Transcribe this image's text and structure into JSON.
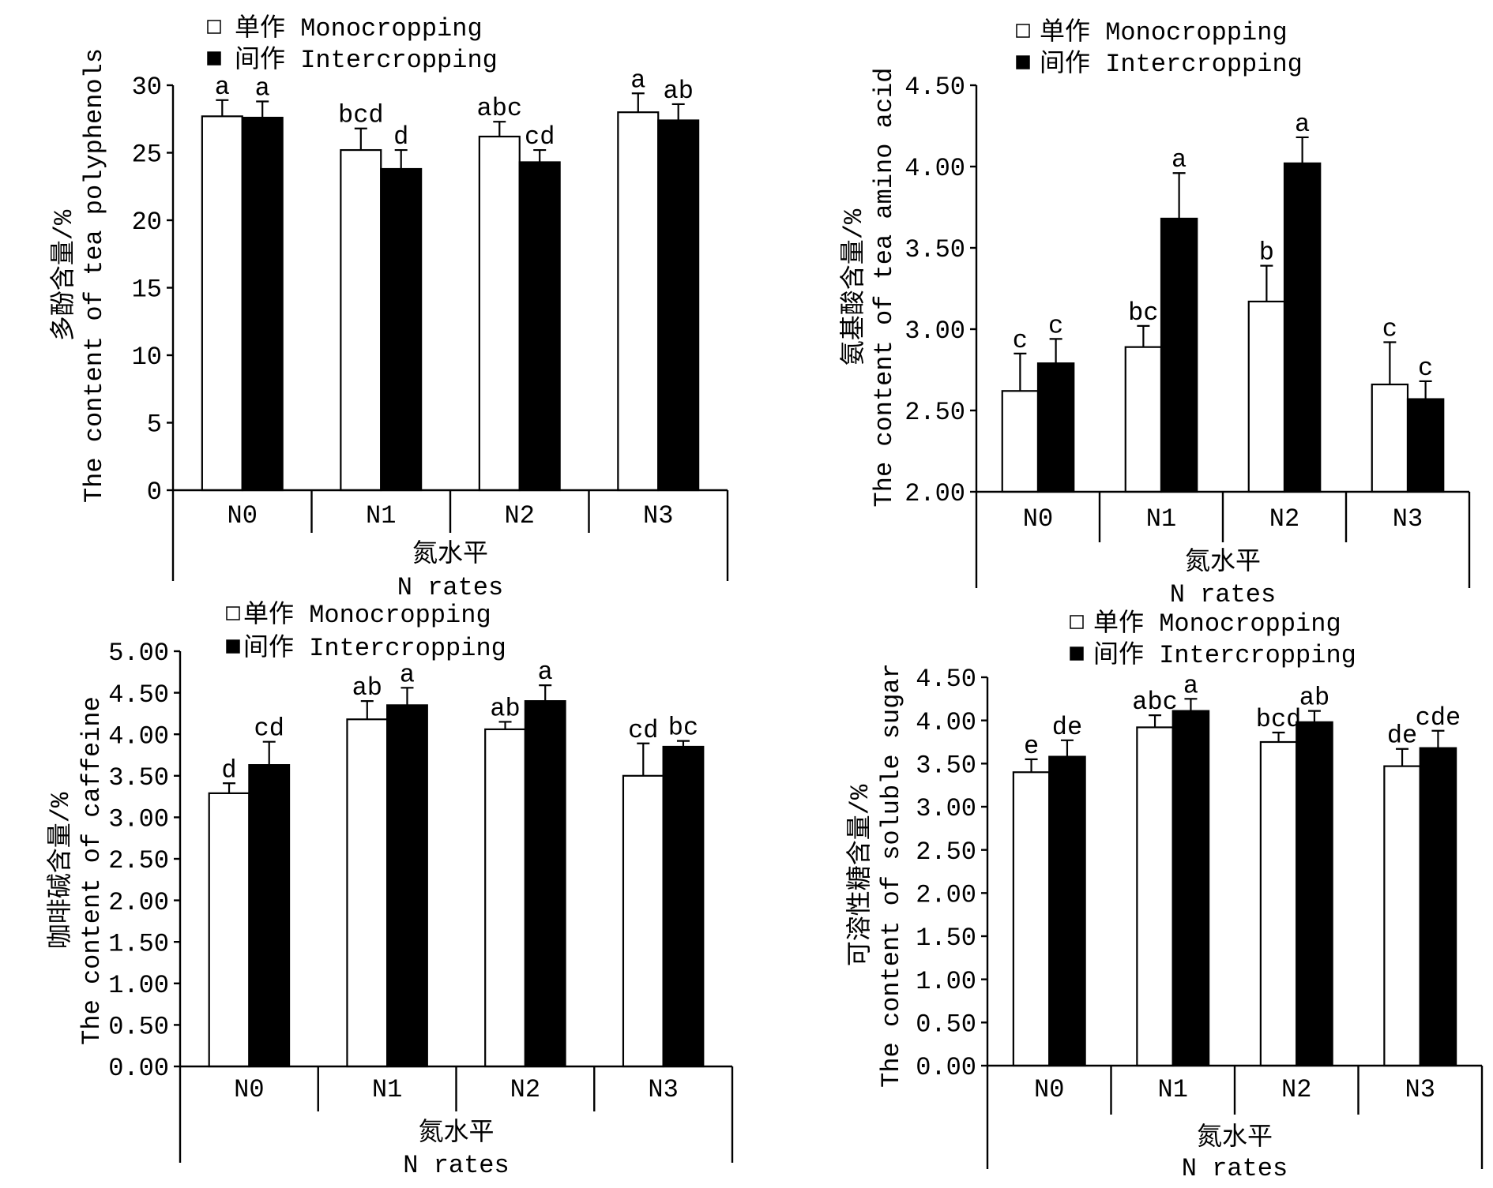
{
  "chart_data": [
    {
      "type": "bar",
      "ylabel": [
        "多酚含量/%",
        "The content of tea polyphenols"
      ],
      "xlabel": [
        "氮水平",
        "N rates"
      ],
      "categories": [
        "N0",
        "N1",
        "N2",
        "N3"
      ],
      "ylim": [
        0,
        30
      ],
      "yticks": [
        "0",
        "5",
        "10",
        "15",
        "20",
        "25",
        "30"
      ],
      "grid": false,
      "legend": "top-left",
      "series": [
        {
          "name": "单作 Monocropping",
          "color": "#ffffff",
          "values": [
            27.7,
            25.2,
            26.2,
            28.0
          ],
          "error": [
            1.2,
            1.6,
            1.1,
            1.4
          ],
          "letters": [
            "a",
            "bcd",
            "abc",
            "a"
          ]
        },
        {
          "name": "间作 Intercropping",
          "color": "#000000",
          "values": [
            27.6,
            23.8,
            24.3,
            27.4
          ],
          "error": [
            1.2,
            1.4,
            0.9,
            1.2
          ],
          "letters": [
            "a",
            "d",
            "cd",
            "ab"
          ]
        }
      ]
    },
    {
      "type": "bar",
      "ylabel": [
        "氨基酸含量/%",
        "The content of tea amino acid"
      ],
      "xlabel": [
        "氮水平",
        "N rates"
      ],
      "categories": [
        "N0",
        "N1",
        "N2",
        "N3"
      ],
      "ylim": [
        2.0,
        4.5
      ],
      "yticks": [
        "2.00",
        "2.50",
        "3.00",
        "3.50",
        "4.00",
        "4.50"
      ],
      "grid": false,
      "legend": "top-left",
      "series": [
        {
          "name": "单作 Monocropping",
          "color": "#ffffff",
          "values": [
            2.62,
            2.89,
            3.17,
            2.66
          ],
          "error": [
            0.23,
            0.13,
            0.22,
            0.26
          ],
          "letters": [
            "c",
            "bc",
            "b",
            "c"
          ]
        },
        {
          "name": "间作 Intercropping",
          "color": "#000000",
          "values": [
            2.79,
            3.68,
            4.02,
            2.57
          ],
          "error": [
            0.15,
            0.28,
            0.16,
            0.11
          ],
          "letters": [
            "c",
            "a",
            "a",
            "c"
          ]
        }
      ]
    },
    {
      "type": "bar",
      "ylabel": [
        "咖啡碱含量/%",
        "The content of caffeine"
      ],
      "xlabel": [
        "氮水平",
        "N rates"
      ],
      "categories": [
        "N0",
        "N1",
        "N2",
        "N3"
      ],
      "ylim": [
        0,
        5.0
      ],
      "yticks": [
        "0.00",
        "0.50",
        "1.00",
        "1.50",
        "2.00",
        "2.50",
        "3.00",
        "3.50",
        "4.00",
        "4.50",
        "5.00"
      ],
      "grid": false,
      "legend": "top-left",
      "series": [
        {
          "name": "单作 Monocropping",
          "color": "#ffffff",
          "values": [
            3.29,
            4.18,
            4.06,
            3.5
          ],
          "error": [
            0.12,
            0.22,
            0.09,
            0.39
          ],
          "letters": [
            "d",
            "ab",
            "ab",
            "cd"
          ]
        },
        {
          "name": "间作 Intercropping",
          "color": "#000000",
          "values": [
            3.63,
            4.35,
            4.4,
            3.85
          ],
          "error": [
            0.28,
            0.21,
            0.19,
            0.07
          ],
          "letters": [
            "cd",
            "a",
            "a",
            "bc"
          ]
        }
      ]
    },
    {
      "type": "bar",
      "ylabel": [
        "可溶性糖含量/%",
        "The content of soluble sugar"
      ],
      "xlabel": [
        "氮水平",
        "N rates"
      ],
      "categories": [
        "N0",
        "N1",
        "N2",
        "N3"
      ],
      "ylim": [
        0,
        4.5
      ],
      "yticks": [
        "0.00",
        "0.50",
        "1.00",
        "1.50",
        "2.00",
        "2.50",
        "3.00",
        "3.50",
        "4.00",
        "4.50"
      ],
      "grid": false,
      "legend": "top-left",
      "series": [
        {
          "name": "单作 Monocropping",
          "color": "#ffffff",
          "values": [
            3.4,
            3.92,
            3.75,
            3.47
          ],
          "error": [
            0.15,
            0.14,
            0.11,
            0.2
          ],
          "letters": [
            "e",
            "abc",
            "bcd",
            "de"
          ]
        },
        {
          "name": "间作 Intercropping",
          "color": "#000000",
          "values": [
            3.58,
            4.11,
            3.98,
            3.68
          ],
          "error": [
            0.19,
            0.14,
            0.13,
            0.2
          ],
          "letters": [
            "de",
            "a",
            "ab",
            "cde"
          ]
        }
      ]
    }
  ]
}
